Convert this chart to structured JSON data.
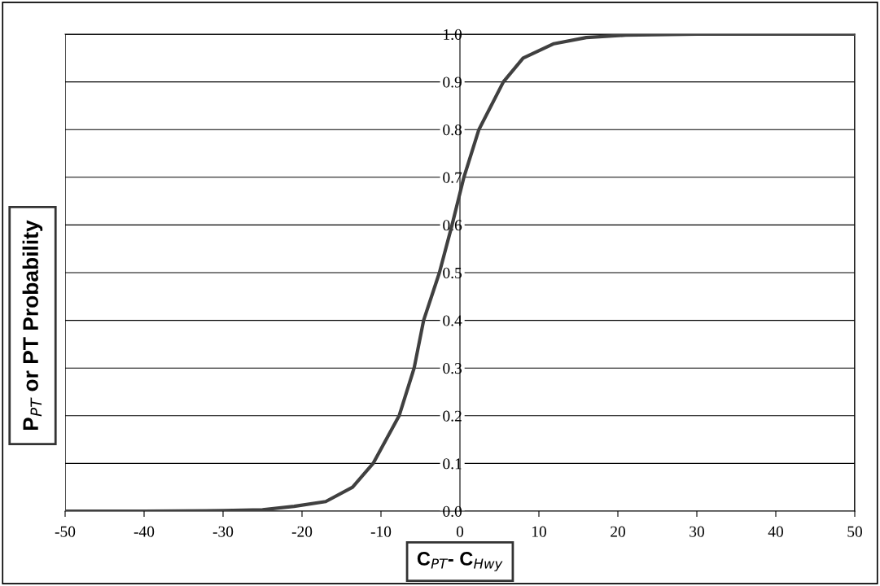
{
  "chart_data": {
    "type": "line",
    "xlabel": "C$_{PT}$- C$_{Hwy}$",
    "ylabel": "P$_{PT}$ or PT Probability",
    "x": [
      -50,
      -40,
      -30,
      -25,
      -21,
      -17,
      -13.6,
      -11,
      -7.7,
      -5.8,
      -4.6,
      -2.6,
      -1.0,
      0.5,
      2.4,
      5.5,
      8.0,
      11.9,
      16,
      21,
      30,
      40,
      50
    ],
    "series": [
      {
        "color": "#404040",
        "values": [
          0,
          0,
          0.001,
          0.003,
          0.01,
          0.02,
          0.05,
          0.1,
          0.2,
          0.3,
          0.4,
          0.5,
          0.6,
          0.7,
          0.8,
          0.9,
          0.95,
          0.98,
          0.993,
          0.998,
          1.0,
          1.0,
          1.0
        ]
      }
    ],
    "xlim": [
      -50,
      50
    ],
    "ylim": [
      0,
      1
    ],
    "xticks": [
      -50,
      -40,
      -30,
      -20,
      -10,
      0,
      10,
      20,
      30,
      40,
      50
    ],
    "yticks": [
      {
        "value": 0,
        "label": "0.0"
      },
      0.1,
      0.2,
      0.3,
      0.4,
      0.5,
      0.6,
      0.7,
      0.8,
      0.9,
      {
        "value": 1,
        "label": "1.0"
      }
    ],
    "grid": "y",
    "line_style": "solid",
    "marker": "none"
  }
}
